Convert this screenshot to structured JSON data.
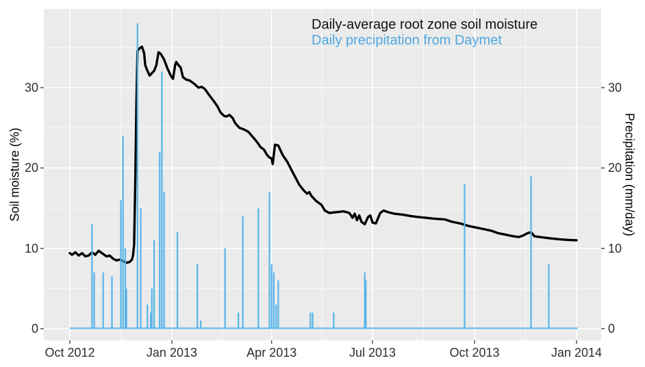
{
  "colors": {
    "panel_background": "#EBEBEB",
    "grid_major": "#FFFFFF",
    "grid_minor": "#FFFFFF",
    "tick_mark": "#333333",
    "tick_label": "#2e2e2e",
    "soil_moisture_line": "#000000",
    "precipitation_bar": "#56B4E9",
    "legend_line_text": "#111111",
    "legend_bar_text": "#4FA8E0"
  },
  "chart_data": {
    "type": "line+bar",
    "title": "",
    "legend_position": "top-right inside, text annotations",
    "grid": "on (white major and minor gridlines on gray panel, ggplot style)",
    "x_axis": {
      "label": "",
      "tick_labels": [
        "Oct 2012",
        "Jan 2013",
        "Apr 2013",
        "Jul 2013",
        "Oct 2013",
        "Jan 2014"
      ],
      "tick_days": [
        0,
        92,
        182,
        273,
        365,
        457
      ],
      "minor_tick_days": [
        46,
        137,
        227.5,
        319,
        411
      ],
      "domain_days": [
        0,
        457
      ],
      "epoch_day0": "2012-10-01"
    },
    "y_left": {
      "label": "Soil moisture (%)",
      "ticks": [
        0,
        10,
        20,
        30
      ],
      "minor_ticks": [
        5,
        15,
        25,
        35
      ],
      "range": [
        -1.5,
        39.9
      ]
    },
    "y_right": {
      "label": "Precipitation (mm/day)",
      "ticks": [
        0,
        10,
        20,
        30
      ],
      "range": [
        -1.5,
        39.9
      ]
    },
    "series": [
      {
        "name": "Daily-average root zone soil moisture",
        "type": "line",
        "axis": "left",
        "color": "#000000",
        "points": [
          [
            0,
            9.4
          ],
          [
            2,
            9.2
          ],
          [
            5,
            9.5
          ],
          [
            8,
            9.1
          ],
          [
            11,
            9.4
          ],
          [
            14,
            9.0
          ],
          [
            17,
            9.1
          ],
          [
            20,
            9.5
          ],
          [
            23,
            9.2
          ],
          [
            26,
            9.7
          ],
          [
            29,
            9.4
          ],
          [
            33,
            9.0
          ],
          [
            36,
            9.1
          ],
          [
            39,
            8.7
          ],
          [
            42,
            8.5
          ],
          [
            45,
            8.6
          ],
          [
            48,
            8.4
          ],
          [
            51,
            8.2
          ],
          [
            54,
            8.3
          ],
          [
            56,
            8.6
          ],
          [
            57,
            9.1
          ],
          [
            58,
            10.5
          ],
          [
            59,
            18.0
          ],
          [
            60,
            28.0
          ],
          [
            61,
            34.6
          ],
          [
            63,
            34.9
          ],
          [
            65,
            35.1
          ],
          [
            67,
            34.3
          ],
          [
            68,
            32.8
          ],
          [
            70,
            32.1
          ],
          [
            72,
            31.5
          ],
          [
            74,
            31.8
          ],
          [
            76,
            32.1
          ],
          [
            78,
            32.8
          ],
          [
            80,
            34.4
          ],
          [
            82,
            34.2
          ],
          [
            85,
            33.5
          ],
          [
            88,
            32.4
          ],
          [
            91,
            31.5
          ],
          [
            93,
            31.1
          ],
          [
            95,
            32.8
          ],
          [
            96,
            33.2
          ],
          [
            98,
            32.8
          ],
          [
            100,
            32.5
          ],
          [
            102,
            31.3
          ],
          [
            105,
            31.0
          ],
          [
            108,
            30.9
          ],
          [
            112,
            30.5
          ],
          [
            116,
            30.0
          ],
          [
            119,
            30.1
          ],
          [
            122,
            29.8
          ],
          [
            125,
            29.2
          ],
          [
            130,
            28.3
          ],
          [
            133,
            27.7
          ],
          [
            136,
            26.9
          ],
          [
            139,
            26.5
          ],
          [
            141,
            26.4
          ],
          [
            144,
            26.6
          ],
          [
            147,
            26.2
          ],
          [
            149,
            25.6
          ],
          [
            153,
            25.0
          ],
          [
            157,
            24.8
          ],
          [
            161,
            24.5
          ],
          [
            166,
            23.7
          ],
          [
            169,
            23.2
          ],
          [
            172,
            22.6
          ],
          [
            175,
            22.3
          ],
          [
            178,
            21.6
          ],
          [
            180,
            21.3
          ],
          [
            182,
            21.2
          ],
          [
            183,
            20.5
          ],
          [
            185,
            22.9
          ],
          [
            188,
            22.8
          ],
          [
            192,
            21.6
          ],
          [
            196,
            20.8
          ],
          [
            202,
            19.2
          ],
          [
            207,
            17.9
          ],
          [
            211,
            17.2
          ],
          [
            214,
            16.8
          ],
          [
            216,
            17.0
          ],
          [
            218,
            16.5
          ],
          [
            222,
            15.9
          ],
          [
            227,
            15.4
          ],
          [
            230,
            14.7
          ],
          [
            234,
            14.4
          ],
          [
            240,
            14.5
          ],
          [
            247,
            14.6
          ],
          [
            252,
            14.4
          ],
          [
            255,
            13.8
          ],
          [
            257,
            14.3
          ],
          [
            259,
            13.5
          ],
          [
            261,
            14.1
          ],
          [
            263,
            13.3
          ],
          [
            266,
            13.0
          ],
          [
            269,
            13.9
          ],
          [
            271,
            14.1
          ],
          [
            273,
            13.2
          ],
          [
            276,
            13.1
          ],
          [
            280,
            14.4
          ],
          [
            283,
            14.7
          ],
          [
            287,
            14.5
          ],
          [
            293,
            14.3
          ],
          [
            300,
            14.2
          ],
          [
            308,
            14.0
          ],
          [
            314,
            13.9
          ],
          [
            321,
            13.8
          ],
          [
            328,
            13.7
          ],
          [
            338,
            13.6
          ],
          [
            345,
            13.3
          ],
          [
            352,
            13.1
          ],
          [
            359,
            12.8
          ],
          [
            366,
            12.6
          ],
          [
            373,
            12.4
          ],
          [
            380,
            12.2
          ],
          [
            386,
            11.9
          ],
          [
            393,
            11.7
          ],
          [
            400,
            11.5
          ],
          [
            405,
            11.4
          ],
          [
            409,
            11.6
          ],
          [
            413,
            11.9
          ],
          [
            416,
            12.0
          ],
          [
            419,
            11.5
          ],
          [
            424,
            11.4
          ],
          [
            430,
            11.3
          ],
          [
            436,
            11.2
          ],
          [
            444,
            11.1
          ],
          [
            450,
            11.05
          ],
          [
            457,
            11.0
          ]
        ]
      },
      {
        "name": "Daily precipitation from Daymet",
        "type": "bar",
        "axis": "right",
        "color": "#56B4E9",
        "days": [
          20,
          22,
          30,
          38,
          46,
          48,
          50,
          51,
          61,
          64,
          70,
          73,
          74,
          76,
          81,
          83,
          85,
          97,
          115,
          118,
          140,
          152,
          156,
          170,
          180,
          182,
          184,
          186,
          188,
          217,
          219,
          238,
          266,
          267,
          356,
          416,
          432
        ],
        "values": [
          13,
          7,
          7,
          6.5,
          16,
          24,
          10,
          5,
          38,
          15,
          3,
          2,
          5,
          11,
          22,
          32,
          17,
          12,
          8,
          1,
          10,
          2,
          14,
          15,
          17,
          8,
          7,
          3,
          6,
          2,
          2,
          2,
          7,
          6,
          18,
          19,
          8
        ],
        "dates": [
          "2012-10-21",
          "2012-10-23",
          "2012-10-31",
          "2012-11-08",
          "2012-11-16",
          "2012-11-18",
          "2012-11-20",
          "2012-11-21",
          "2012-12-01",
          "2012-12-04",
          "2012-12-10",
          "2012-12-13",
          "2012-12-14",
          "2012-12-16",
          "2012-12-21",
          "2012-12-23",
          "2012-12-25",
          "2013-01-06",
          "2013-01-24",
          "2013-01-27",
          "2013-02-18",
          "2013-03-02",
          "2013-03-06",
          "2013-03-20",
          "2013-03-30",
          "2013-04-01",
          "2013-04-03",
          "2013-04-05",
          "2013-04-07",
          "2013-05-06",
          "2013-05-08",
          "2013-05-27",
          "2013-06-24",
          "2013-06-25",
          "2013-09-22",
          "2013-11-21",
          "2013-12-07"
        ],
        "baseline_value": 0
      }
    ]
  },
  "legend": {
    "line_label": "Daily-average root zone soil moisture",
    "bar_label": "Daily precipitation from Daymet"
  }
}
